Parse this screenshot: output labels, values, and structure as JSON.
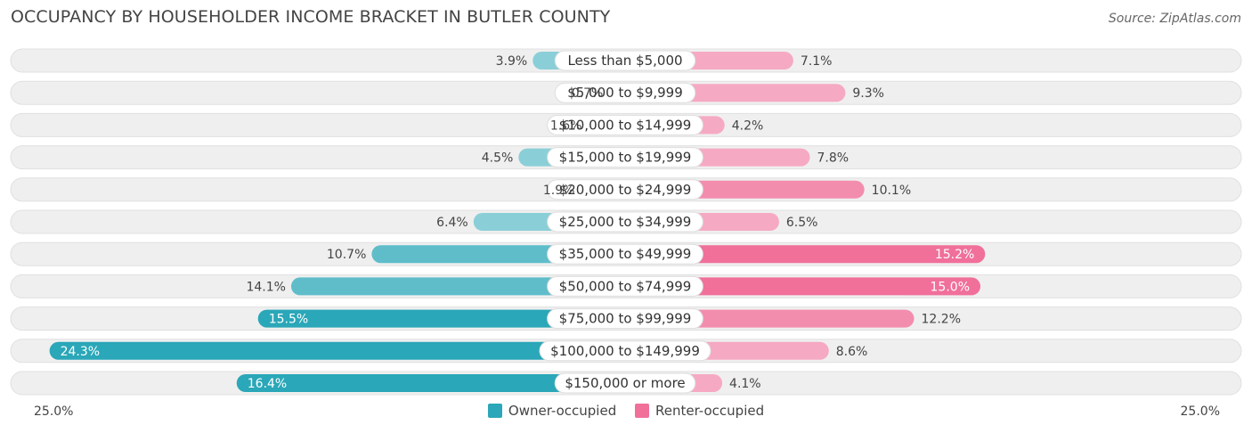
{
  "chart_data": {
    "type": "bar",
    "orientation": "horizontal-diverging",
    "title": "OCCUPANCY BY HOUSEHOLDER INCOME BRACKET IN BUTLER COUNTY",
    "source": "Source: ZipAtlas.com",
    "categories": [
      "Less than $5,000",
      "$5,000 to $9,999",
      "$10,000 to $14,999",
      "$15,000 to $19,999",
      "$20,000 to $24,999",
      "$25,000 to $34,999",
      "$35,000 to $49,999",
      "$50,000 to $74,999",
      "$75,000 to $99,999",
      "$100,000 to $149,999",
      "$150,000 or more"
    ],
    "series": [
      {
        "name": "Owner-occupied",
        "color": "#2aa7b8",
        "values": [
          3.9,
          0.7,
          1.6,
          4.5,
          1.9,
          6.4,
          10.7,
          14.1,
          15.5,
          24.3,
          16.4
        ]
      },
      {
        "name": "Renter-occupied",
        "color": "#f0709a",
        "values": [
          7.1,
          9.3,
          4.2,
          7.8,
          10.1,
          6.5,
          15.2,
          15.0,
          12.2,
          8.6,
          4.1
        ]
      }
    ],
    "value_labels": {
      "owner": [
        "3.9%",
        "0.7%",
        "1.6%",
        "4.5%",
        "1.9%",
        "6.4%",
        "10.7%",
        "14.1%",
        "15.5%",
        "24.3%",
        "16.4%"
      ],
      "renter": [
        "7.1%",
        "9.3%",
        "4.2%",
        "7.8%",
        "10.1%",
        "6.5%",
        "15.2%",
        "15.0%",
        "12.2%",
        "8.6%",
        "4.1%"
      ]
    },
    "axis": {
      "left_label": "25.0%",
      "right_label": "25.0%",
      "max": 25.0
    },
    "legend": {
      "position": "bottom-center",
      "owner_label": "Owner-occupied",
      "renter_label": "Renter-occupied"
    }
  }
}
